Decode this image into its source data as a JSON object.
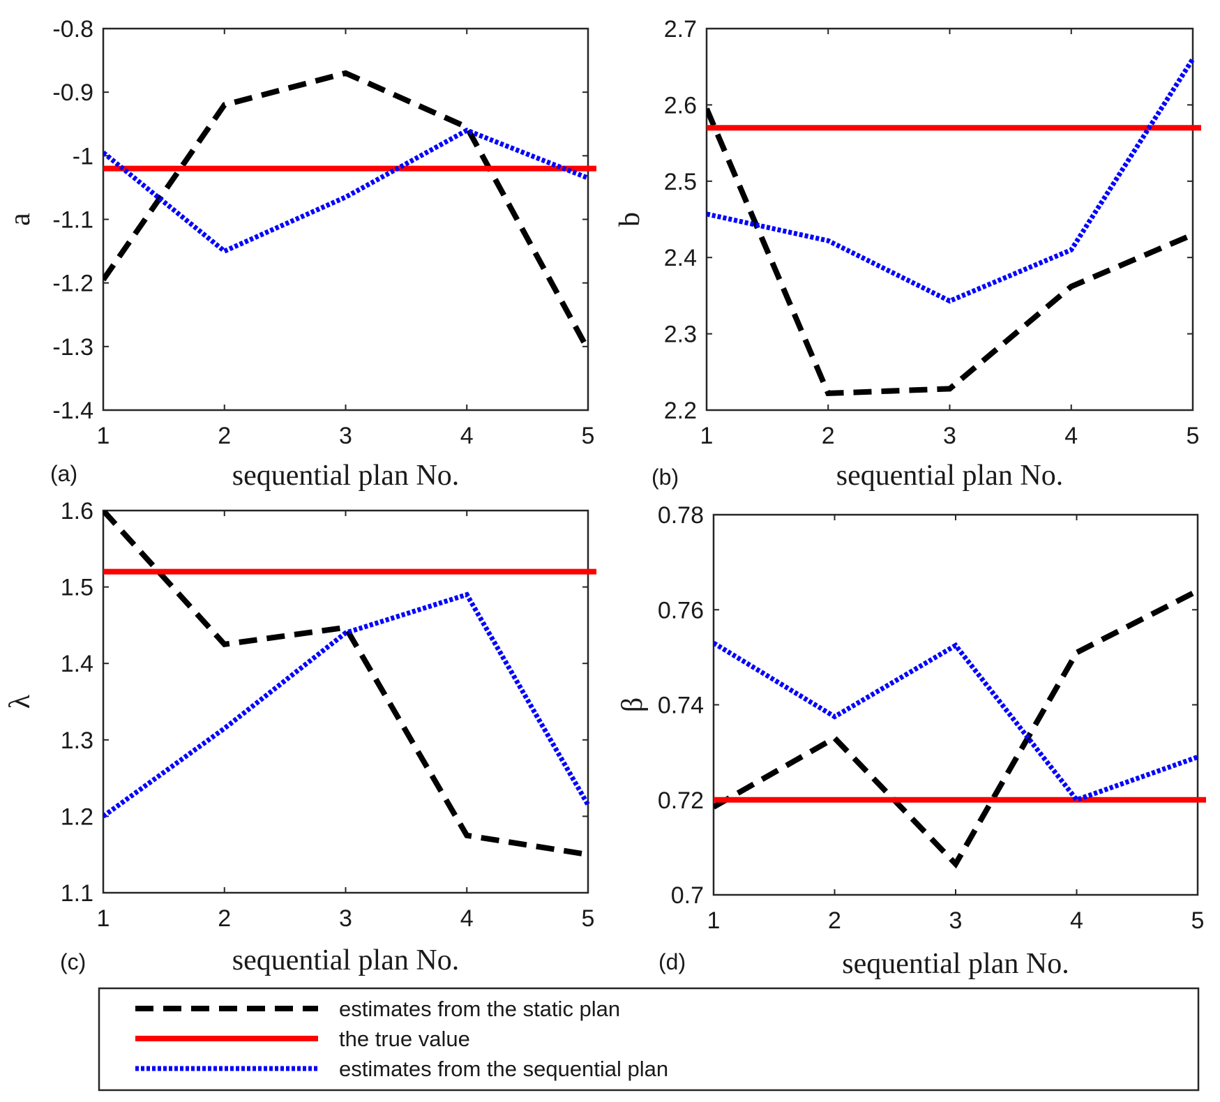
{
  "colors": {
    "static": "#000000",
    "truth": "#ff0000",
    "sequential": "#0000ff",
    "axis": "#262626"
  },
  "legend": {
    "static": "estimates from the static plan",
    "truth": "the true value",
    "sequential": "estimates from the sequential plan"
  },
  "chart_data": [
    {
      "type": "line",
      "panel": "(a)",
      "xlabel": "sequential plan No.",
      "ylabel": "a",
      "x": [
        1,
        2,
        3,
        4,
        5
      ],
      "xticks": [
        "1",
        "2",
        "3",
        "4",
        "5"
      ],
      "xlim": [
        1,
        5
      ],
      "ylim": [
        -1.4,
        -0.8
      ],
      "yticks": [
        "-0.8",
        "-0.9",
        "-1",
        "-1.1",
        "-1.2",
        "-1.3",
        "-1.4"
      ],
      "ytick_values": [
        -0.8,
        -0.9,
        -1.0,
        -1.1,
        -1.2,
        -1.3,
        -1.4
      ],
      "series": [
        {
          "name": "estimates from the static plan",
          "style": "dashed",
          "values": [
            -1.195,
            -0.92,
            -0.87,
            -0.955,
            -1.305
          ]
        },
        {
          "name": "the true value",
          "style": "solid",
          "values": [
            -1.02,
            -1.02,
            -1.02,
            -1.02,
            -1.02
          ]
        },
        {
          "name": "estimates from the sequential plan",
          "style": "dotted",
          "values": [
            -0.995,
            -1.15,
            -1.065,
            -0.96,
            -1.035
          ]
        }
      ]
    },
    {
      "type": "line",
      "panel": "(b)",
      "xlabel": "sequential plan No.",
      "ylabel": "b",
      "x": [
        1,
        2,
        3,
        4,
        5
      ],
      "xticks": [
        "1",
        "2",
        "3",
        "4",
        "5"
      ],
      "xlim": [
        1,
        5
      ],
      "ylim": [
        2.2,
        2.7
      ],
      "yticks": [
        "2.7",
        "2.6",
        "2.5",
        "2.4",
        "2.3",
        "2.2"
      ],
      "ytick_values": [
        2.7,
        2.6,
        2.5,
        2.4,
        2.3,
        2.2
      ],
      "series": [
        {
          "name": "estimates from the static plan",
          "style": "dashed",
          "values": [
            2.595,
            2.222,
            2.228,
            2.362,
            2.43
          ]
        },
        {
          "name": "the true value",
          "style": "solid",
          "values": [
            2.57,
            2.57,
            2.57,
            2.57,
            2.57
          ]
        },
        {
          "name": "estimates from the sequential plan",
          "style": "dotted",
          "values": [
            2.457,
            2.422,
            2.343,
            2.41,
            2.66
          ]
        }
      ]
    },
    {
      "type": "line",
      "panel": "(c)",
      "xlabel": "sequential plan No.",
      "ylabel": "λ",
      "x": [
        1,
        2,
        3,
        4,
        5
      ],
      "xticks": [
        "1",
        "2",
        "3",
        "4",
        "5"
      ],
      "xlim": [
        1,
        5
      ],
      "ylim": [
        1.1,
        1.6
      ],
      "yticks": [
        "1.6",
        "1.5",
        "1.4",
        "1.3",
        "1.2",
        "1.1"
      ],
      "ytick_values": [
        1.6,
        1.5,
        1.4,
        1.3,
        1.2,
        1.1
      ],
      "series": [
        {
          "name": "estimates from the static plan",
          "style": "dashed",
          "values": [
            1.6,
            1.425,
            1.447,
            1.175,
            1.15
          ]
        },
        {
          "name": "the true value",
          "style": "solid",
          "values": [
            1.52,
            1.52,
            1.52,
            1.52,
            1.52
          ]
        },
        {
          "name": "estimates from the sequential plan",
          "style": "dotted",
          "values": [
            1.2,
            1.315,
            1.44,
            1.49,
            1.215
          ]
        }
      ]
    },
    {
      "type": "line",
      "panel": "(d)",
      "xlabel": "sequential plan No.",
      "ylabel": "β",
      "x": [
        1,
        2,
        3,
        4,
        5
      ],
      "xticks": [
        "1",
        "2",
        "3",
        "4",
        "5"
      ],
      "xlim": [
        1,
        5
      ],
      "ylim": [
        0.7,
        0.78
      ],
      "yticks": [
        "0.78",
        "0.76",
        "0.74",
        "0.72",
        "0.7"
      ],
      "ytick_values": [
        0.78,
        0.76,
        0.74,
        0.72,
        0.7
      ],
      "series": [
        {
          "name": "estimates from the static plan",
          "style": "dashed",
          "values": [
            0.7185,
            0.733,
            0.7065,
            0.751,
            0.764
          ]
        },
        {
          "name": "the true value",
          "style": "solid",
          "values": [
            0.72,
            0.72,
            0.72,
            0.72,
            0.72
          ]
        },
        {
          "name": "estimates from the sequential plan",
          "style": "dotted",
          "values": [
            0.753,
            0.7375,
            0.7525,
            0.72,
            0.729
          ]
        }
      ]
    }
  ]
}
